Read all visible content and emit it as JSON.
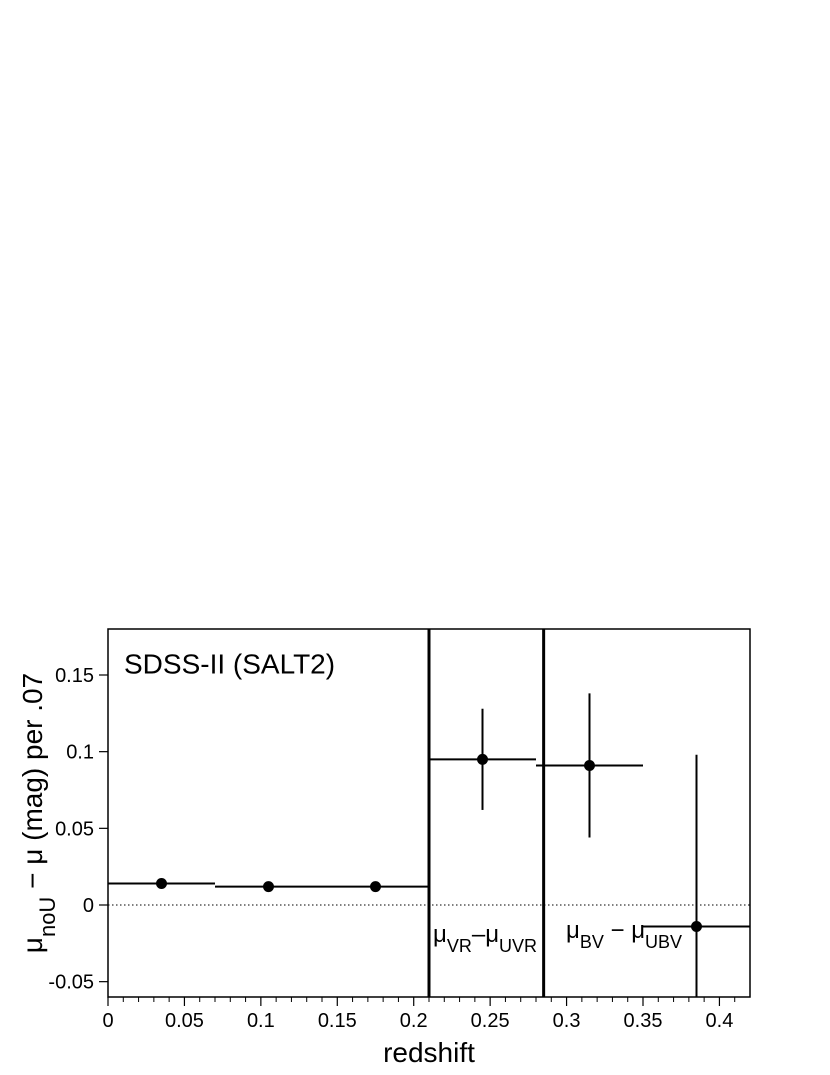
{
  "chart_data": {
    "type": "scatter",
    "annotation": "SDSS-II (SALT2)",
    "x_label": "redshift",
    "y_label_parts": [
      "μ",
      "noU",
      " − μ (mag)   per .07"
    ],
    "region_labels": [
      [
        "μ",
        "VR",
        "–μ",
        "UVR"
      ],
      [
        "μ",
        "BV",
        " − μ",
        "UBV"
      ]
    ],
    "series": [
      {
        "color": "#000000",
        "x": [
          0.035,
          0.105,
          0.175,
          0.245,
          0.315,
          0.385
        ],
        "values": [
          0.014,
          0.012,
          0.012,
          0.095,
          0.091,
          -0.014
        ],
        "xerr": [
          0.035,
          0.035,
          0.035,
          0.035,
          0.035,
          0.035
        ],
        "yerr": [
          0,
          0,
          0,
          0.033,
          0.047,
          0.112
        ]
      }
    ],
    "vlines": [
      0.21,
      0.285
    ],
    "hlines": [
      0
    ],
    "xlim": [
      0,
      0.42
    ],
    "ylim": [
      -0.06,
      0.18
    ],
    "xticks": [
      0,
      0.05,
      0.1,
      0.15,
      0.2,
      0.25,
      0.3,
      0.35,
      0.4
    ],
    "xminorticks": [
      0.01,
      0.02,
      0.03,
      0.04,
      0.06,
      0.07,
      0.08,
      0.09,
      0.11,
      0.12,
      0.13,
      0.14,
      0.16,
      0.17,
      0.18,
      0.19,
      0.21,
      0.22,
      0.23,
      0.24,
      0.26,
      0.27,
      0.28,
      0.29,
      0.31,
      0.32,
      0.33,
      0.34,
      0.36,
      0.37,
      0.38,
      0.39,
      0.41
    ],
    "yticks": [
      -0.05,
      0,
      0.05,
      0.1,
      0.15
    ]
  }
}
